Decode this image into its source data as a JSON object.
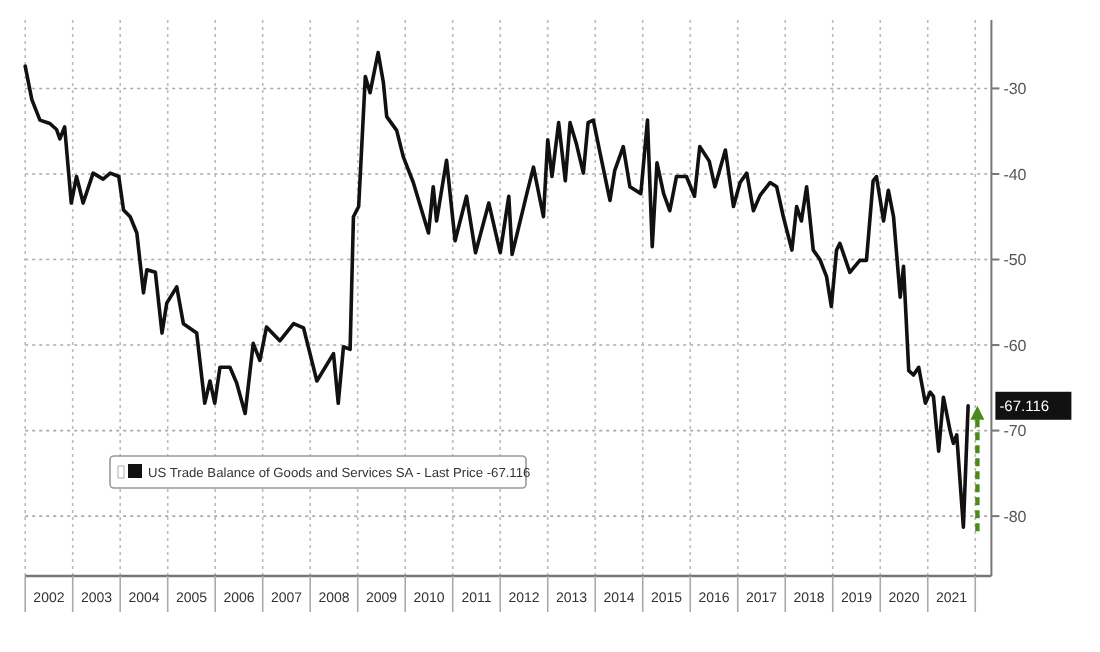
{
  "chart_data": {
    "type": "line",
    "xlim": [
      2002,
      2022.34
    ],
    "ylim": [
      -87,
      -22
    ],
    "yticks": [
      -30,
      -40,
      -50,
      -60,
      -70,
      -80
    ],
    "xticks": [
      {
        "value": 2002,
        "label": null
      },
      {
        "value": 2002.5,
        "label": "2002"
      },
      {
        "value": 2003,
        "label": null
      },
      {
        "value": 2003.5,
        "label": "2003"
      },
      {
        "value": 2004,
        "label": null
      },
      {
        "value": 2004.5,
        "label": "2004"
      },
      {
        "value": 2005,
        "label": null
      },
      {
        "value": 2005.5,
        "label": "2005"
      },
      {
        "value": 2006,
        "label": null
      },
      {
        "value": 2006.5,
        "label": "2006"
      },
      {
        "value": 2007,
        "label": null
      },
      {
        "value": 2007.5,
        "label": "2007"
      },
      {
        "value": 2008,
        "label": null
      },
      {
        "value": 2008.5,
        "label": "2008"
      },
      {
        "value": 2009,
        "label": null
      },
      {
        "value": 2009.5,
        "label": "2009"
      },
      {
        "value": 2010,
        "label": null
      },
      {
        "value": 2010.5,
        "label": "2010"
      },
      {
        "value": 2011,
        "label": null
      },
      {
        "value": 2011.5,
        "label": "2011"
      },
      {
        "value": 2012,
        "label": null
      },
      {
        "value": 2012.5,
        "label": "2012"
      },
      {
        "value": 2013,
        "label": null
      },
      {
        "value": 2013.5,
        "label": "2013"
      },
      {
        "value": 2014,
        "label": null
      },
      {
        "value": 2014.5,
        "label": "2014"
      },
      {
        "value": 2015,
        "label": null
      },
      {
        "value": 2015.5,
        "label": "2015"
      },
      {
        "value": 2016,
        "label": null
      },
      {
        "value": 2016.5,
        "label": "2016"
      },
      {
        "value": 2017,
        "label": null
      },
      {
        "value": 2017.5,
        "label": "2017"
      },
      {
        "value": 2018,
        "label": null
      },
      {
        "value": 2018.5,
        "label": "2018"
      },
      {
        "value": 2019,
        "label": null
      },
      {
        "value": 2019.5,
        "label": "2019"
      },
      {
        "value": 2020,
        "label": null
      },
      {
        "value": 2020.5,
        "label": "2020"
      },
      {
        "value": 2021,
        "label": null
      },
      {
        "value": 2021.5,
        "label": "2021"
      },
      {
        "value": 2022,
        "label": null
      }
    ],
    "grid": true,
    "legend": "bottom left",
    "line_style": "solid",
    "annotations": [
      "-67.116"
    ],
    "series": [
      {
        "name": "US Trade Balance of Goods and Services SA - Last Price -67.116",
        "color": "#111111",
        "x": [
          2002.0,
          2002.14,
          2002.31,
          2002.52,
          2002.66,
          2002.73,
          2002.83,
          2002.97,
          2003.08,
          2003.22,
          2003.43,
          2003.64,
          2003.79,
          2003.97,
          2004.07,
          2004.21,
          2004.35,
          2004.49,
          2004.56,
          2004.74,
          2004.88,
          2004.98,
          2005.19,
          2005.33,
          2005.61,
          2005.78,
          2005.89,
          2005.99,
          2006.1,
          2006.31,
          2006.45,
          2006.63,
          2006.8,
          2006.94,
          2007.08,
          2007.36,
          2007.65,
          2007.86,
          2008.14,
          2008.49,
          2008.59,
          2008.7,
          2008.84,
          2008.91,
          2009.02,
          2009.16,
          2009.26,
          2009.43,
          2009.54,
          2009.61,
          2009.82,
          2009.96,
          2010.17,
          2010.49,
          2010.59,
          2010.66,
          2010.87,
          2011.05,
          2011.29,
          2011.48,
          2011.76,
          2012.0,
          2012.18,
          2012.25,
          2012.56,
          2012.7,
          2012.91,
          2013.0,
          2013.09,
          2013.23,
          2013.37,
          2013.47,
          2013.6,
          2013.75,
          2013.85,
          2013.96,
          2014.1,
          2014.31,
          2014.41,
          2014.59,
          2014.73,
          2014.96,
          2015.1,
          2015.2,
          2015.3,
          2015.44,
          2015.57,
          2015.71,
          2015.92,
          2016.09,
          2016.2,
          2016.4,
          2016.52,
          2016.74,
          2016.91,
          2017.05,
          2017.19,
          2017.33,
          2017.47,
          2017.68,
          2017.82,
          2017.96,
          2018.14,
          2018.24,
          2018.34,
          2018.45,
          2018.59,
          2018.73,
          2018.87,
          2018.97,
          2019.08,
          2019.15,
          2019.36,
          2019.57,
          2019.71,
          2019.85,
          2019.92,
          2020.07,
          2020.17,
          2020.28,
          2020.42,
          2020.49,
          2020.6,
          2020.7,
          2020.81,
          2020.95,
          2021.05,
          2021.12,
          2021.23,
          2021.33,
          2021.47,
          2021.54,
          2021.61,
          2021.75,
          2021.85
        ],
        "values": [
          -27.4,
          -31.3,
          -33.7,
          -34.1,
          -34.8,
          -35.9,
          -34.5,
          -43.4,
          -40.3,
          -43.4,
          -39.9,
          -40.6,
          -39.9,
          -40.3,
          -44.2,
          -45,
          -46.9,
          -53.9,
          -51.2,
          -51.5,
          -58.6,
          -55.1,
          -53.2,
          -57.5,
          -58.6,
          -66.8,
          -64.2,
          -66.8,
          -62.6,
          -62.6,
          -64.4,
          -68,
          -59.8,
          -61.8,
          -57.9,
          -59.5,
          -57.5,
          -58,
          -64.2,
          -61,
          -66.8,
          -60.2,
          -60.5,
          -45,
          -43.8,
          -28.6,
          -30.5,
          -25.8,
          -29.3,
          -33.3,
          -34.9,
          -38,
          -41,
          -46.9,
          -41.5,
          -45.5,
          -38.4,
          -47.8,
          -42.6,
          -49.2,
          -43.4,
          -49.2,
          -42.6,
          -49.4,
          -42.3,
          -39.2,
          -45,
          -36,
          -40.3,
          -34,
          -40.8,
          -34,
          -36.4,
          -39.9,
          -34,
          -33.7,
          -37.5,
          -43.1,
          -39.6,
          -36.8,
          -41.5,
          -42.3,
          -33.7,
          -48.5,
          -38.7,
          -42.3,
          -44.3,
          -40.3,
          -40.3,
          -42.6,
          -36.8,
          -38.5,
          -41.5,
          -37.2,
          -43.8,
          -41,
          -39.9,
          -44.3,
          -42.5,
          -41,
          -41.5,
          -45,
          -48.9,
          -43.8,
          -45.5,
          -41.5,
          -48.9,
          -50,
          -52,
          -55.5,
          -48.9,
          -48.1,
          -51.5,
          -50.1,
          -50.1,
          -40.8,
          -40.3,
          -45.5,
          -41.9,
          -45,
          -54.4,
          -50.8,
          -63,
          -63.5,
          -62.6,
          -66.8,
          -65.5,
          -66,
          -72.4,
          -66.1,
          -70,
          -71.5,
          -70.5,
          -81.3,
          -67.1
        ]
      }
    ]
  }
}
